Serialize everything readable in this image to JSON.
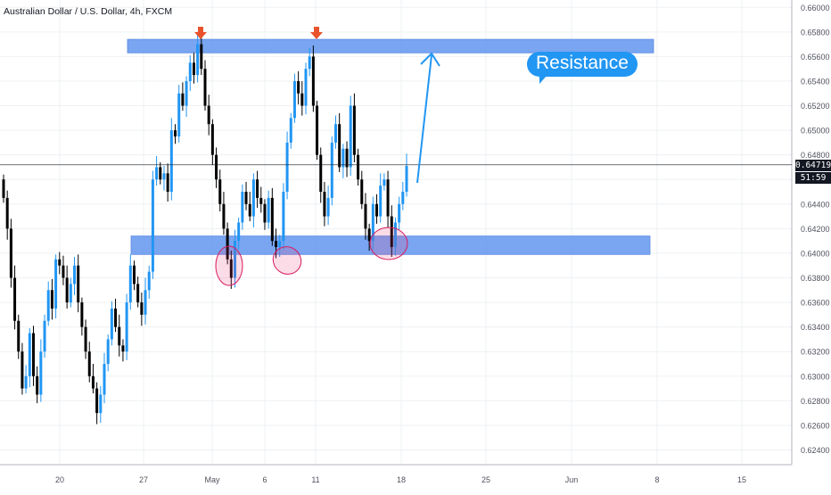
{
  "chart_data": {
    "type": "candlestick",
    "title": "Australian Dollar / U.S. Dollar, 4h, FXCM",
    "x_ticks": [
      "20",
      "27",
      "May",
      "6",
      "11",
      "18",
      "25",
      "Jun",
      "8",
      "15"
    ],
    "y_ticks": [
      "0.66000",
      "0.65800",
      "0.65600",
      "0.65400",
      "0.65200",
      "0.65000",
      "0.64800",
      "0.64600",
      "0.64400",
      "0.64200",
      "0.64000",
      "0.63800",
      "0.63600",
      "0.63400",
      "0.63200",
      "0.63000",
      "0.62800",
      "0.62600",
      "0.62400"
    ],
    "ylim": [
      0.6228,
      0.6606
    ],
    "last_price": "0.64719",
    "countdown": "51:59",
    "up_color": "#2196f3",
    "down_color": "#000000",
    "resistance_zone": [
      0.6563,
      0.6574
    ],
    "support_zone": [
      0.6399,
      0.6414
    ],
    "annotation": "Resistance",
    "closes": [
      0.6445,
      0.642,
      0.638,
      0.6345,
      0.632,
      0.629,
      0.63,
      0.6335,
      0.63,
      0.6285,
      0.632,
      0.6345,
      0.637,
      0.6355,
      0.6395,
      0.639,
      0.638,
      0.636,
      0.6375,
      0.639,
      0.636,
      0.634,
      0.632,
      0.63,
      0.629,
      0.627,
      0.6285,
      0.631,
      0.633,
      0.6355,
      0.634,
      0.6325,
      0.632,
      0.636,
      0.639,
      0.6375,
      0.636,
      0.635,
      0.637,
      0.6385,
      0.646,
      0.647,
      0.646,
      0.6465,
      0.645,
      0.65,
      0.6495,
      0.653,
      0.652,
      0.654,
      0.6555,
      0.6545,
      0.657,
      0.655,
      0.652,
      0.6505,
      0.648,
      0.646,
      0.644,
      0.642,
      0.6395,
      0.638,
      0.641,
      0.6425,
      0.645,
      0.644,
      0.643,
      0.646,
      0.6445,
      0.644,
      0.6425,
      0.6445,
      0.641,
      0.6405,
      0.641,
      0.645,
      0.649,
      0.651,
      0.654,
      0.653,
      0.652,
      0.655,
      0.656,
      0.652,
      0.648,
      0.645,
      0.643,
      0.6445,
      0.649,
      0.6505,
      0.647,
      0.6485,
      0.647,
      0.652,
      0.648,
      0.646,
      0.644,
      0.642,
      0.641,
      0.644,
      0.643,
      0.6455,
      0.646,
      0.643,
      0.6405,
      0.6425,
      0.644,
      0.645,
      0.6471
    ]
  }
}
